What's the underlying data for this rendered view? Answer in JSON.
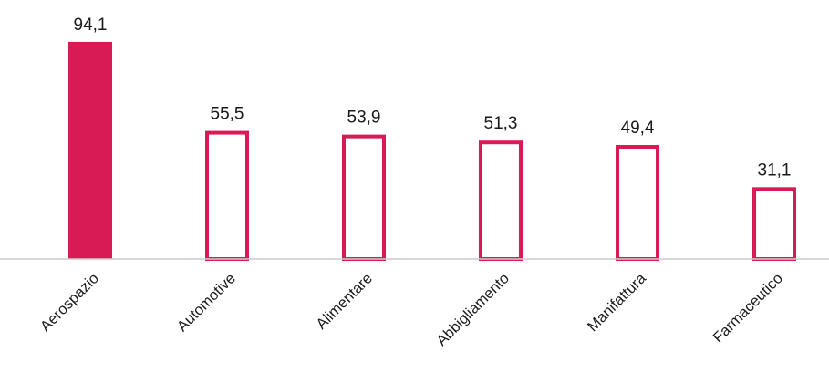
{
  "chart_data": {
    "type": "bar",
    "categories": [
      "Aerospazio",
      "Automotive",
      "Alimentare",
      "Abbigliamento",
      "Manifattura",
      "Farmaceutico"
    ],
    "values": [
      94.1,
      55.5,
      53.9,
      51.3,
      49.4,
      31.1
    ],
    "value_labels": [
      "94,1",
      "55,5",
      "53,9",
      "51,3",
      "49,4",
      "31,1"
    ],
    "highlighted_index": 0,
    "ylim": [
      0,
      100
    ],
    "grid": false,
    "legend": "none",
    "colors": {
      "accent": "#d81b55",
      "outline_fill": "#ffffff",
      "baseline": "#cccccc",
      "text": "#1a1a1a"
    }
  }
}
